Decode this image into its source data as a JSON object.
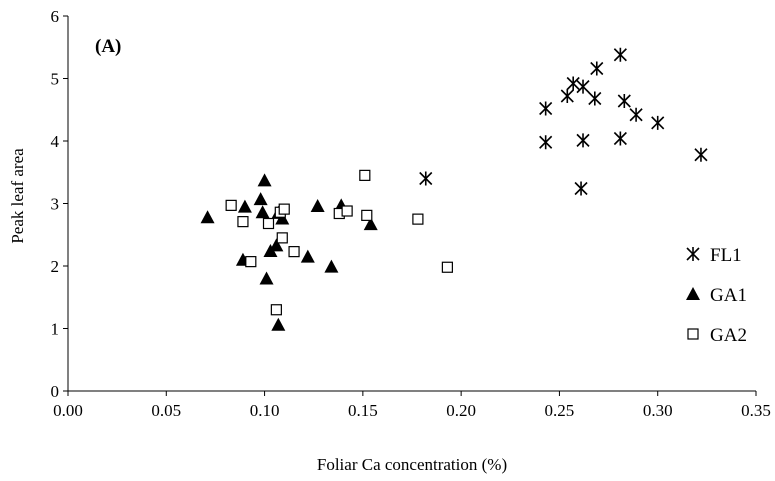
{
  "chart_data": {
    "type": "scatter",
    "panel_label": "(A)",
    "xlabel": "Foliar Ca concentration (%)",
    "ylabel": "Peak leaf area",
    "xlim": [
      0,
      0.35
    ],
    "ylim": [
      0,
      6
    ],
    "xticks": [
      "0.00",
      "0.05",
      "0.10",
      "0.15",
      "0.20",
      "0.25",
      "0.30",
      "0.35"
    ],
    "yticks": [
      "0",
      "1",
      "2",
      "3",
      "4",
      "5",
      "6"
    ],
    "grid": false,
    "legend_position": "right",
    "series": [
      {
        "name": "FL1",
        "marker": "asterisk",
        "points": [
          [
            0.182,
            3.4
          ],
          [
            0.243,
            4.52
          ],
          [
            0.243,
            3.98
          ],
          [
            0.254,
            4.72
          ],
          [
            0.257,
            4.92
          ],
          [
            0.262,
            4.87
          ],
          [
            0.268,
            4.68
          ],
          [
            0.269,
            5.16
          ],
          [
            0.281,
            5.38
          ],
          [
            0.283,
            4.64
          ],
          [
            0.289,
            4.42
          ],
          [
            0.3,
            4.29
          ],
          [
            0.262,
            4.01
          ],
          [
            0.281,
            4.04
          ],
          [
            0.261,
            3.24
          ],
          [
            0.322,
            3.78
          ]
        ]
      },
      {
        "name": "GA1",
        "marker": "filled-triangle",
        "points": [
          [
            0.071,
            2.78
          ],
          [
            0.089,
            2.1
          ],
          [
            0.09,
            2.95
          ],
          [
            0.098,
            3.07
          ],
          [
            0.099,
            2.86
          ],
          [
            0.1,
            3.37
          ],
          [
            0.101,
            1.8
          ],
          [
            0.103,
            2.24
          ],
          [
            0.106,
            2.33
          ],
          [
            0.107,
            2.85
          ],
          [
            0.107,
            1.06
          ],
          [
            0.109,
            2.76
          ],
          [
            0.122,
            2.15
          ],
          [
            0.127,
            2.96
          ],
          [
            0.134,
            1.99
          ],
          [
            0.139,
            2.97
          ],
          [
            0.154,
            2.67
          ]
        ]
      },
      {
        "name": "GA2",
        "marker": "open-square",
        "points": [
          [
            0.083,
            2.97
          ],
          [
            0.089,
            2.71
          ],
          [
            0.093,
            2.07
          ],
          [
            0.102,
            2.68
          ],
          [
            0.106,
            1.3
          ],
          [
            0.108,
            2.86
          ],
          [
            0.109,
            2.45
          ],
          [
            0.11,
            2.91
          ],
          [
            0.115,
            2.23
          ],
          [
            0.138,
            2.84
          ],
          [
            0.142,
            2.88
          ],
          [
            0.151,
            3.45
          ],
          [
            0.152,
            2.81
          ],
          [
            0.178,
            2.75
          ],
          [
            0.193,
            1.98
          ]
        ]
      }
    ]
  }
}
